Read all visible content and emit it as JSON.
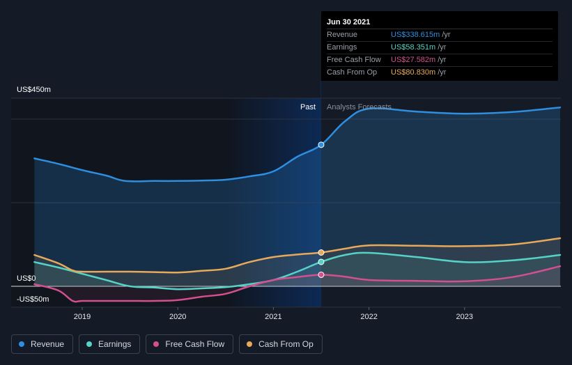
{
  "chart_data": {
    "type": "line",
    "x_ticks": [
      2019,
      2020,
      2021,
      2022,
      2023
    ],
    "xlim": [
      2018.5,
      2024.0
    ],
    "ylim": [
      -50,
      450
    ],
    "y_labels": [
      {
        "value": 450,
        "text": "US$450m"
      },
      {
        "value": 0,
        "text": "US$0"
      },
      {
        "value": -50,
        "text": "-US$50m"
      }
    ],
    "past_label": "Past",
    "forecast_label": "Analysts Forecasts",
    "past_end_x": 2021.5,
    "highlight_start_x": 2020.5,
    "series": [
      {
        "name": "Revenue",
        "color": "#2e8fe0",
        "marker_value": 338.615,
        "points": [
          [
            2018.5,
            306
          ],
          [
            2018.75,
            293
          ],
          [
            2019.0,
            278
          ],
          [
            2019.25,
            265
          ],
          [
            2019.45,
            252
          ],
          [
            2019.75,
            252
          ],
          [
            2020.0,
            252
          ],
          [
            2020.25,
            253
          ],
          [
            2020.5,
            255
          ],
          [
            2020.75,
            263
          ],
          [
            2021.0,
            275
          ],
          [
            2021.25,
            310
          ],
          [
            2021.5,
            338.615
          ],
          [
            2021.75,
            395
          ],
          [
            2022.0,
            425
          ],
          [
            2022.5,
            418
          ],
          [
            2023.0,
            413
          ],
          [
            2023.5,
            417
          ],
          [
            2024.0,
            428
          ]
        ]
      },
      {
        "name": "Earnings",
        "color": "#54d3c6",
        "marker_value": 58.351,
        "points": [
          [
            2018.5,
            58
          ],
          [
            2018.75,
            45
          ],
          [
            2019.0,
            30
          ],
          [
            2019.25,
            15
          ],
          [
            2019.5,
            0
          ],
          [
            2019.75,
            -3
          ],
          [
            2020.0,
            -7
          ],
          [
            2020.25,
            -5
          ],
          [
            2020.5,
            -2
          ],
          [
            2020.75,
            5
          ],
          [
            2021.0,
            15
          ],
          [
            2021.25,
            35
          ],
          [
            2021.5,
            58.351
          ],
          [
            2021.75,
            75
          ],
          [
            2022.0,
            80
          ],
          [
            2022.5,
            70
          ],
          [
            2023.0,
            58
          ],
          [
            2023.5,
            62
          ],
          [
            2024.0,
            75
          ]
        ]
      },
      {
        "name": "Free Cash Flow",
        "color": "#d2508e",
        "marker_value": 27.582,
        "points": [
          [
            2018.5,
            5
          ],
          [
            2018.75,
            -10
          ],
          [
            2018.9,
            -35
          ],
          [
            2019.0,
            -35
          ],
          [
            2019.25,
            -35
          ],
          [
            2019.5,
            -35
          ],
          [
            2019.75,
            -35
          ],
          [
            2020.0,
            -33
          ],
          [
            2020.25,
            -25
          ],
          [
            2020.5,
            -18
          ],
          [
            2020.75,
            0
          ],
          [
            2021.0,
            15
          ],
          [
            2021.25,
            22
          ],
          [
            2021.5,
            27.582
          ],
          [
            2021.75,
            23
          ],
          [
            2022.0,
            15
          ],
          [
            2022.5,
            13
          ],
          [
            2023.0,
            12
          ],
          [
            2023.5,
            22
          ],
          [
            2024.0,
            48
          ]
        ]
      },
      {
        "name": "Cash From Op",
        "color": "#e9a95a",
        "marker_value": 80.83,
        "points": [
          [
            2018.5,
            75
          ],
          [
            2018.75,
            55
          ],
          [
            2018.9,
            38
          ],
          [
            2019.0,
            35
          ],
          [
            2019.25,
            35
          ],
          [
            2019.5,
            35
          ],
          [
            2019.75,
            34
          ],
          [
            2020.0,
            33
          ],
          [
            2020.25,
            37
          ],
          [
            2020.5,
            42
          ],
          [
            2020.75,
            58
          ],
          [
            2021.0,
            70
          ],
          [
            2021.25,
            76
          ],
          [
            2021.5,
            80.83
          ],
          [
            2021.75,
            90
          ],
          [
            2022.0,
            98
          ],
          [
            2022.5,
            97
          ],
          [
            2023.0,
            96
          ],
          [
            2023.5,
            100
          ],
          [
            2024.0,
            115
          ]
        ]
      }
    ]
  },
  "tooltip": {
    "date": "Jun 30 2021",
    "rows": [
      {
        "label": "Revenue",
        "value": "US$338.615m",
        "unit": "/yr",
        "color": "#2e8fe0"
      },
      {
        "label": "Earnings",
        "value": "US$58.351m",
        "unit": "/yr",
        "color": "#54d3c6"
      },
      {
        "label": "Free Cash Flow",
        "value": "US$27.582m",
        "unit": "/yr",
        "color": "#d2508e"
      },
      {
        "label": "Cash From Op",
        "value": "US$80.830m",
        "unit": "/yr",
        "color": "#e9a95a"
      }
    ]
  },
  "legend": [
    {
      "label": "Revenue",
      "color": "#2e8fe0"
    },
    {
      "label": "Earnings",
      "color": "#54d3c6"
    },
    {
      "label": "Free Cash Flow",
      "color": "#d2508e"
    },
    {
      "label": "Cash From Op",
      "color": "#e9a95a"
    }
  ]
}
